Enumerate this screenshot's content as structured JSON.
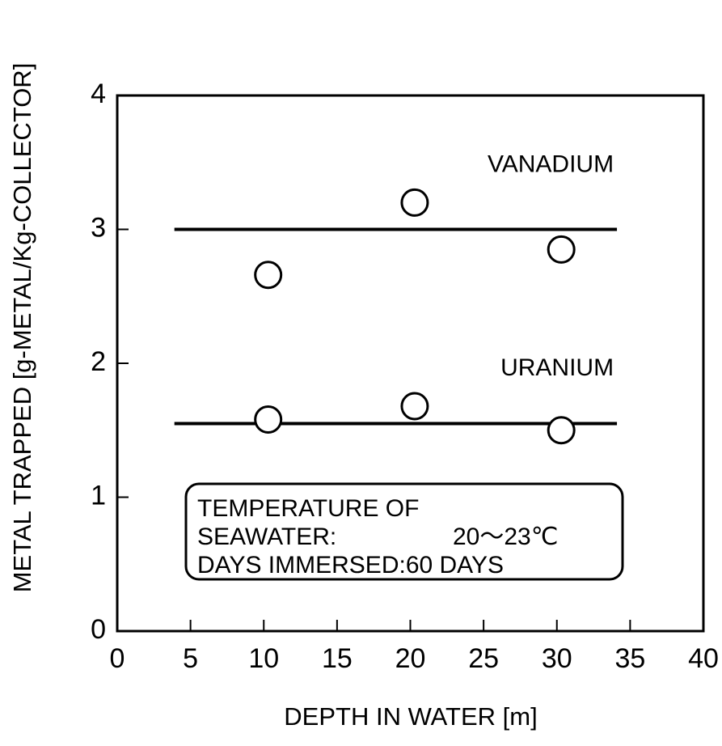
{
  "chart_data": {
    "type": "scatter",
    "xlabel": "DEPTH IN WATER [m]",
    "ylabel": "METAL TRAPPED [g-METAL/Kg-COLLECTOR]",
    "xlim": [
      0,
      40
    ],
    "xticks": [
      0,
      5,
      10,
      15,
      20,
      25,
      30,
      35,
      40
    ],
    "ylim": [
      0,
      4
    ],
    "yticks": [
      0,
      1,
      2,
      3,
      4
    ],
    "color": "#000000",
    "series": [
      {
        "name": "VANADIUM",
        "x": [
          10.3,
          20.3,
          30.3
        ],
        "values": [
          2.66,
          3.2,
          2.85
        ],
        "line": {
          "y": 3,
          "x": [
            3.9,
            34.1
          ]
        }
      },
      {
        "name": "URANIUM",
        "x": [
          10.3,
          20.3,
          30.3
        ],
        "values": [
          1.58,
          1.68,
          1.5
        ],
        "line": {
          "y": 1.55,
          "x": [
            3.9,
            34.1
          ]
        }
      }
    ],
    "annotation": [
      "TEMPERATURE OF",
      "SEAWATER:",
      "20〜23℃",
      "DAYS IMMERSED:60 DAYS"
    ]
  }
}
